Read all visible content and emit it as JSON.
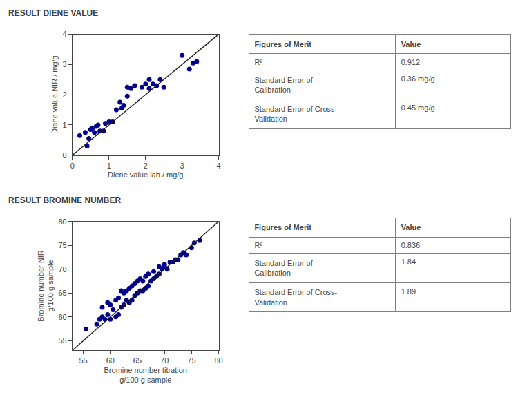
{
  "chart_data": [
    {
      "type": "scatter",
      "title": "RESULT DIENE VALUE",
      "xlabel": "Diene value lab / mg/g",
      "ylabel": "Diene value NIR / mg/g",
      "xlim": [
        0,
        4
      ],
      "ylim": [
        0,
        4
      ],
      "xticks": [
        0,
        1,
        2,
        3,
        4
      ],
      "yticks": [
        0,
        1,
        2,
        3,
        4
      ],
      "grid": false,
      "series": [
        {
          "type": "scatter",
          "color": "#00008B",
          "x": [
            0.2,
            0.35,
            0.4,
            0.45,
            0.5,
            0.55,
            0.6,
            0.65,
            0.7,
            0.75,
            0.85,
            0.9,
            1.0,
            1.1,
            1.2,
            1.3,
            1.35,
            1.4,
            1.5,
            1.5,
            1.6,
            1.7,
            1.9,
            2.0,
            2.1,
            2.1,
            2.2,
            2.3,
            2.4,
            2.5,
            3.0,
            3.2,
            3.3,
            3.4
          ],
          "values": [
            0.65,
            0.75,
            0.3,
            0.55,
            0.85,
            0.9,
            0.75,
            0.95,
            1.0,
            0.8,
            0.8,
            1.05,
            1.1,
            1.1,
            1.5,
            1.75,
            1.55,
            1.65,
            1.95,
            2.25,
            2.2,
            2.3,
            2.25,
            2.35,
            2.2,
            2.5,
            2.35,
            2.3,
            2.5,
            2.25,
            3.3,
            2.85,
            3.05,
            3.1
          ]
        },
        {
          "type": "line",
          "color": "#1a1a1a",
          "x": [
            0,
            4
          ],
          "values": [
            0,
            4
          ]
        }
      ]
    },
    {
      "type": "table",
      "header": [
        "Figures of Merit",
        "Value"
      ],
      "rows": [
        [
          "R²",
          "0.912"
        ],
        [
          "Standard Error of\nCalibration",
          "0.36 mg/g"
        ],
        [
          "Standard Error of Cross-\nValidation",
          "0.45 mg/g"
        ]
      ]
    },
    {
      "type": "scatter",
      "title": "RESULT BROMINE NUMBER",
      "xlabel": "Bromine number titration\ng/100 g sample",
      "ylabel": "Bromine number NIR\ng/100 g sample",
      "xlim": [
        53,
        80
      ],
      "ylim": [
        53,
        80
      ],
      "xticks": [
        55,
        60,
        65,
        70,
        75,
        80
      ],
      "yticks": [
        55,
        60,
        65,
        70,
        75,
        80
      ],
      "grid": false,
      "series": [
        {
          "type": "scatter",
          "color": "#00008B",
          "x": [
            55.5,
            57.5,
            58.0,
            58.5,
            58.5,
            59.0,
            59.5,
            59.5,
            60.0,
            60.0,
            60.5,
            61.0,
            61.0,
            61.5,
            61.5,
            62.0,
            62.0,
            62.5,
            62.5,
            63.0,
            63.0,
            63.5,
            63.5,
            64.0,
            64.0,
            64.5,
            64.5,
            65.0,
            65.0,
            65.5,
            65.5,
            66.0,
            66.0,
            66.5,
            66.5,
            67.0,
            67.0,
            67.5,
            68.0,
            68.0,
            68.5,
            69.0,
            69.0,
            69.5,
            70.0,
            70.0,
            70.5,
            71.0,
            71.5,
            72.0,
            72.5,
            73.0,
            73.5,
            74.0,
            75.0,
            75.5,
            76.5
          ],
          "values": [
            57.5,
            58.5,
            59.5,
            60.0,
            62.0,
            59.5,
            60.5,
            63.0,
            59.5,
            62.5,
            61.5,
            60.0,
            63.5,
            60.5,
            64.0,
            62.0,
            65.5,
            62.5,
            65.0,
            63.5,
            65.5,
            63.0,
            66.0,
            63.5,
            66.5,
            64.5,
            67.0,
            65.0,
            67.5,
            65.5,
            68.0,
            65.5,
            67.5,
            66.0,
            68.5,
            66.5,
            69.0,
            67.5,
            68.0,
            69.5,
            68.5,
            69.0,
            70.5,
            70.0,
            70.5,
            71.0,
            70.0,
            71.5,
            71.5,
            72.0,
            72.0,
            73.0,
            73.5,
            73.0,
            74.5,
            75.5,
            76.0
          ]
        },
        {
          "type": "line",
          "color": "#1a1a1a",
          "x": [
            53,
            80
          ],
          "values": [
            53,
            80
          ]
        }
      ]
    },
    {
      "type": "table",
      "header": [
        "Figures of Merit",
        "Value"
      ],
      "rows": [
        [
          "R²",
          "0.836"
        ],
        [
          "Standard Error of\nCalibration",
          "1.84"
        ],
        [
          "Standard Error of Cross-\nValidation",
          "1.89"
        ]
      ]
    }
  ]
}
